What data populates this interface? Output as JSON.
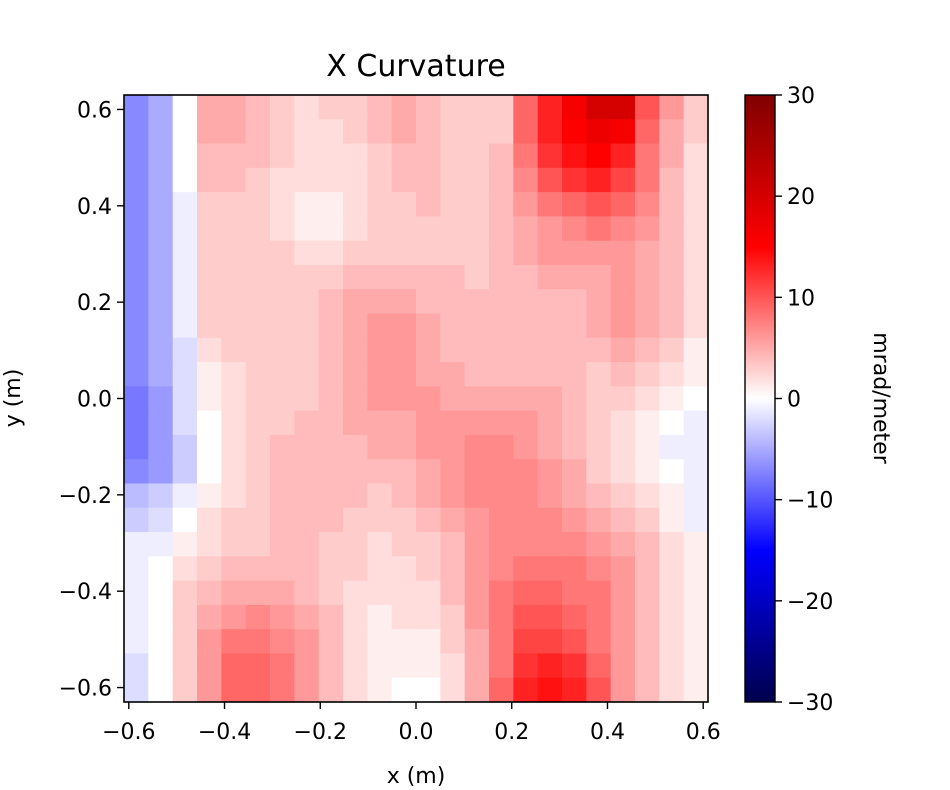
{
  "chart_data": {
    "type": "heatmap",
    "title": "X Curvature",
    "xlabel": "x (m)",
    "ylabel": "y (m)",
    "xlim": [
      -0.61,
      0.61
    ],
    "ylim": [
      -0.63,
      0.63
    ],
    "x_ticks": [
      -0.6,
      -0.4,
      -0.2,
      0.0,
      0.2,
      0.4,
      0.6
    ],
    "x_tick_labels": [
      "−0.6",
      "−0.4",
      "−0.2",
      "0.0",
      "0.2",
      "0.4",
      "0.6"
    ],
    "y_ticks": [
      -0.6,
      -0.4,
      -0.2,
      0.0,
      0.2,
      0.4,
      0.6
    ],
    "y_tick_labels": [
      "−0.6",
      "−0.4",
      "−0.2",
      "0.0",
      "0.2",
      "0.4",
      "0.6"
    ],
    "colorbar": {
      "label": "mrad/meter",
      "colormap": "seismic",
      "vmin": -30,
      "vmax": 30,
      "ticks": [
        -30,
        -20,
        -10,
        0,
        10,
        20,
        30
      ],
      "tick_labels": [
        "−30",
        "−20",
        "−10",
        "0",
        "10",
        "20",
        "30"
      ]
    },
    "grid": {
      "nx": 24,
      "ny": 25,
      "x_centers_note": "evenly spaced across xlim",
      "rows_top_to_bottom": [
        [
          -7,
          -5,
          0,
          5,
          5,
          4,
          3,
          2,
          3,
          3,
          4,
          5,
          4,
          3,
          3,
          3,
          9,
          13,
          16,
          20,
          20,
          10,
          6,
          3
        ],
        [
          -7,
          -5,
          0,
          5,
          5,
          4,
          3,
          2,
          2,
          3,
          4,
          5,
          4,
          3,
          3,
          3,
          9,
          13,
          15,
          17,
          16,
          9,
          5,
          3
        ],
        [
          -7,
          -5,
          0,
          4,
          4,
          4,
          3,
          2,
          2,
          2,
          3,
          4,
          4,
          3,
          3,
          4,
          8,
          12,
          14,
          15,
          13,
          8,
          5,
          2
        ],
        [
          -7,
          -5,
          0,
          4,
          4,
          3,
          2,
          2,
          2,
          2,
          3,
          4,
          4,
          3,
          3,
          4,
          7,
          10,
          12,
          13,
          11,
          8,
          4,
          2
        ],
        [
          -7,
          -5,
          -1,
          3,
          3,
          3,
          2,
          1,
          1,
          2,
          3,
          3,
          4,
          3,
          3,
          4,
          6,
          8,
          9,
          10,
          9,
          7,
          4,
          2
        ],
        [
          -7,
          -5,
          -1,
          3,
          3,
          3,
          2,
          1,
          1,
          2,
          3,
          3,
          3,
          3,
          3,
          4,
          5,
          6,
          7,
          8,
          7,
          6,
          4,
          2
        ],
        [
          -7,
          -5,
          -1,
          3,
          3,
          3,
          3,
          2,
          2,
          3,
          3,
          3,
          3,
          3,
          3,
          4,
          5,
          6,
          6,
          6,
          6,
          5,
          4,
          2
        ],
        [
          -7,
          -5,
          -1,
          3,
          3,
          3,
          3,
          3,
          3,
          4,
          4,
          4,
          4,
          4,
          3,
          4,
          4,
          5,
          5,
          5,
          6,
          5,
          4,
          2
        ],
        [
          -7,
          -5,
          -1,
          3,
          3,
          3,
          3,
          3,
          4,
          5,
          5,
          5,
          4,
          4,
          4,
          4,
          4,
          4,
          4,
          5,
          6,
          5,
          4,
          2
        ],
        [
          -7,
          -5,
          -1,
          3,
          3,
          3,
          3,
          3,
          4,
          5,
          6,
          6,
          5,
          4,
          4,
          4,
          4,
          4,
          4,
          5,
          6,
          5,
          4,
          2
        ],
        [
          -7,
          -5,
          -2,
          2,
          3,
          3,
          3,
          3,
          4,
          5,
          6,
          6,
          5,
          4,
          4,
          4,
          4,
          4,
          4,
          4,
          5,
          4,
          3,
          1
        ],
        [
          -7,
          -5,
          -2,
          1,
          2,
          3,
          3,
          3,
          4,
          5,
          6,
          6,
          5,
          5,
          4,
          4,
          4,
          4,
          4,
          3,
          4,
          3,
          2,
          1
        ],
        [
          -8,
          -6,
          -2,
          1,
          2,
          3,
          3,
          3,
          4,
          5,
          6,
          6,
          6,
          5,
          5,
          5,
          5,
          5,
          4,
          3,
          3,
          2,
          1,
          0
        ],
        [
          -8,
          -6,
          -2,
          0,
          2,
          3,
          3,
          4,
          4,
          5,
          5,
          5,
          6,
          6,
          6,
          6,
          6,
          5,
          4,
          3,
          2,
          1,
          0,
          -1
        ],
        [
          -8,
          -6,
          -3,
          0,
          2,
          3,
          4,
          4,
          4,
          4,
          5,
          5,
          6,
          6,
          7,
          7,
          6,
          5,
          4,
          3,
          2,
          1,
          -1,
          -1
        ],
        [
          -7,
          -6,
          -3,
          0,
          2,
          3,
          4,
          4,
          4,
          4,
          4,
          4,
          5,
          6,
          7,
          7,
          7,
          6,
          5,
          3,
          2,
          1,
          0,
          -1
        ],
        [
          -4,
          -3,
          -1,
          1,
          2,
          3,
          4,
          4,
          4,
          4,
          3,
          4,
          5,
          6,
          7,
          7,
          7,
          6,
          5,
          4,
          3,
          2,
          1,
          -1
        ],
        [
          -3,
          -2,
          0,
          2,
          3,
          3,
          4,
          4,
          4,
          3,
          3,
          3,
          4,
          5,
          6,
          7,
          7,
          7,
          6,
          5,
          4,
          3,
          1,
          -1
        ],
        [
          -1,
          -1,
          1,
          2,
          3,
          3,
          4,
          4,
          3,
          3,
          2,
          3,
          3,
          4,
          6,
          7,
          7,
          7,
          7,
          6,
          5,
          4,
          2,
          1
        ],
        [
          -1,
          0,
          2,
          3,
          4,
          4,
          4,
          4,
          3,
          3,
          2,
          2,
          3,
          4,
          6,
          7,
          8,
          8,
          8,
          7,
          6,
          4,
          2,
          1
        ],
        [
          -1,
          0,
          3,
          4,
          5,
          5,
          5,
          4,
          3,
          2,
          2,
          2,
          2,
          4,
          6,
          8,
          9,
          9,
          8,
          8,
          6,
          4,
          2,
          1
        ],
        [
          -1,
          0,
          3,
          5,
          6,
          7,
          6,
          5,
          4,
          2,
          1,
          2,
          2,
          3,
          6,
          8,
          10,
          10,
          9,
          8,
          6,
          4,
          2,
          1
        ],
        [
          -1,
          0,
          3,
          6,
          8,
          8,
          7,
          6,
          4,
          2,
          1,
          1,
          1,
          3,
          5,
          8,
          11,
          11,
          10,
          8,
          6,
          4,
          2,
          1
        ],
        [
          -2,
          0,
          3,
          6,
          9,
          9,
          8,
          6,
          4,
          2,
          1,
          1,
          1,
          2,
          5,
          8,
          12,
          13,
          12,
          9,
          6,
          4,
          2,
          1
        ],
        [
          -2,
          0,
          3,
          6,
          9,
          9,
          8,
          6,
          4,
          2,
          1,
          0,
          0,
          2,
          5,
          9,
          13,
          14,
          13,
          10,
          6,
          4,
          2,
          1
        ]
      ]
    }
  }
}
